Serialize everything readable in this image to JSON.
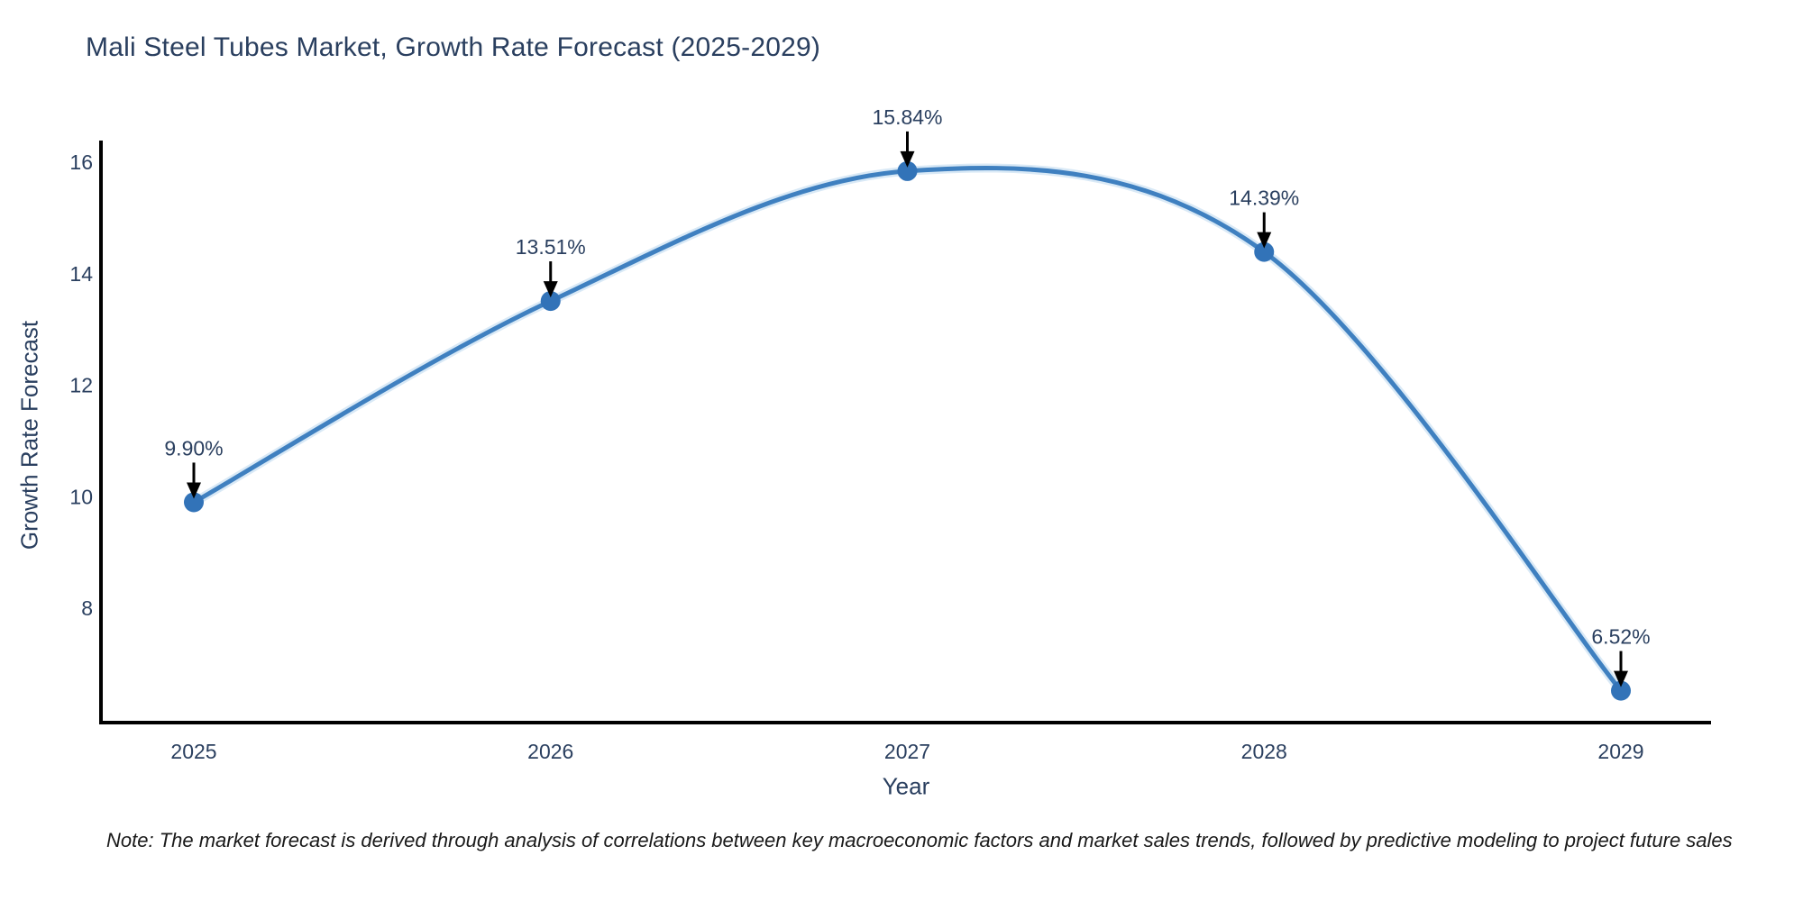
{
  "chart_data": {
    "type": "line",
    "title": "Mali Steel Tubes Market, Growth Rate Forecast (2025-2029)",
    "xlabel": "Year",
    "ylabel": "Growth Rate Forecast",
    "x": [
      2025,
      2026,
      2027,
      2028,
      2029
    ],
    "series": [
      {
        "name": "Growth Rate Forecast",
        "values": [
          9.9,
          13.51,
          15.84,
          14.39,
          6.52
        ],
        "point_labels": [
          "9.90%",
          "13.51%",
          "15.84%",
          "14.39%",
          "6.52%"
        ]
      }
    ],
    "x_tick_labels": [
      "2025",
      "2026",
      "2027",
      "2028",
      "2029"
    ],
    "y_tick_values": [
      8,
      10,
      12,
      14,
      16
    ],
    "ylim": [
      5.95,
      16.36
    ],
    "xlim": [
      2024.74,
      2029.25
    ],
    "grid": false,
    "line_shape": "spline",
    "legend": "none",
    "colors": {
      "line": "#3f80c0",
      "line_halo": "#b9d7ee",
      "marker": "#3273b8",
      "axis_line": "#000000",
      "tick_text": "#2a3f5f",
      "annotation_text": "#2a3f5f",
      "annotation_arrow": "#000000",
      "title_text": "#2a3f5f",
      "background": "#ffffff"
    }
  },
  "note": "Note: The market forecast is derived through analysis of correlations between key macroeconomic factors and market sales trends, followed by predictive modeling to project future sales"
}
